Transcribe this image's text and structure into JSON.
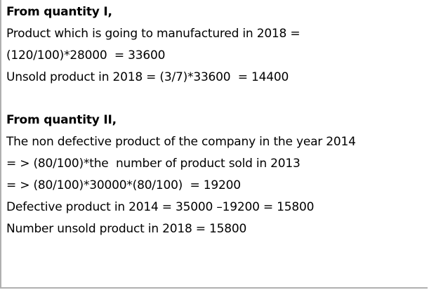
{
  "section1": {
    "heading": "From quantity I,",
    "lines": [
      "Product which is going to manufactured in 2018 =",
      "(120/100)*28000  = 33600",
      "Unsold product in 2018 = (3/7)*33600  = 14400"
    ]
  },
  "section2": {
    "heading": "From quantity II,",
    "lines": [
      "The non defective product of the company in the year 2014",
      "= > (80/100)*the  number of product sold in 2013",
      "= > (80/100)*30000*(80/100)  = 19200",
      "Defective product in 2014 = 35000 –19200 = 15800",
      "Number unsold product in 2018 = 15800"
    ]
  }
}
